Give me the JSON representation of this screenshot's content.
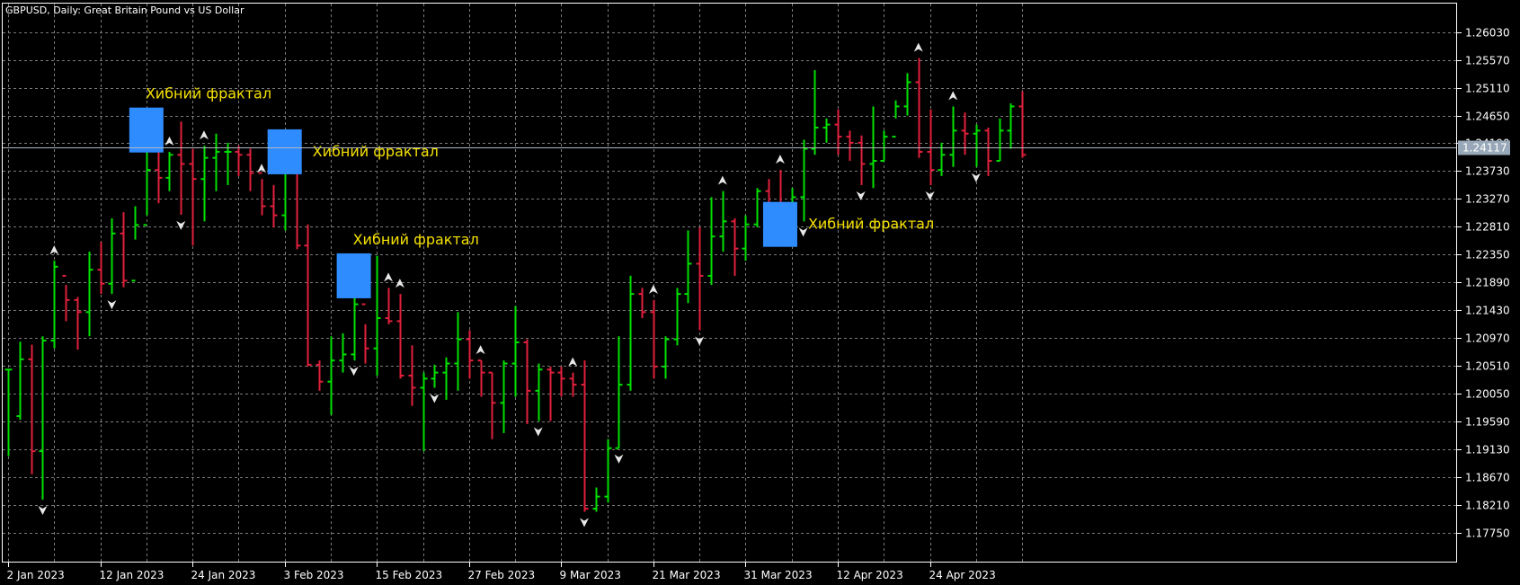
{
  "chart_data": {
    "type": "ohlc",
    "title": "GBPUSD, Daily:  Great Britain Pound vs US Dollar",
    "colors": {
      "background": "#000000",
      "grid": "#7a7a7a",
      "frame": "#ffffff",
      "bull": "#00e000",
      "bear": "#e0203c",
      "fractal_marker": "#e8e8e8",
      "annotation_box": "#2f8cff",
      "annotation_text": "#f5e000",
      "current_price_bg": "#98a8b8"
    },
    "y_axis": {
      "min": 1.1726,
      "max": 1.265,
      "ticks": [
        "1.26030",
        "1.25570",
        "1.25110",
        "1.24650",
        "1.24190",
        "1.23730",
        "1.23270",
        "1.22810",
        "1.22350",
        "1.21890",
        "1.21430",
        "1.20970",
        "1.20510",
        "1.20050",
        "1.19590",
        "1.19130",
        "1.18670",
        "1.18210",
        "1.17750"
      ]
    },
    "x_axis": {
      "labels": [
        {
          "text": "2 Jan 2023",
          "bar": 0
        },
        {
          "text": "12 Jan 2023",
          "bar": 8
        },
        {
          "text": "24 Jan 2023",
          "bar": 16
        },
        {
          "text": "3 Feb 2023",
          "bar": 24
        },
        {
          "text": "15 Feb 2023",
          "bar": 32
        },
        {
          "text": "27 Feb 2023",
          "bar": 40
        },
        {
          "text": "9 Mar 2023",
          "bar": 48
        },
        {
          "text": "21 Mar 2023",
          "bar": 56
        },
        {
          "text": "31 Mar 2023",
          "bar": 64
        },
        {
          "text": "12 Apr 2023",
          "bar": 72
        },
        {
          "text": "24 Apr 2023",
          "bar": 80
        }
      ]
    },
    "current_price": "1.24117",
    "bars": [
      [
        1.2045,
        1.2046,
        1.1902,
        1.2045
      ],
      [
        1.1968,
        1.2091,
        1.1962,
        1.2062
      ],
      [
        1.2062,
        1.2086,
        1.1872,
        1.191
      ],
      [
        1.191,
        1.21,
        1.183,
        1.2093
      ],
      [
        1.2093,
        1.2225,
        1.208,
        1.2215
      ],
      [
        1.22,
        1.2185,
        1.2125,
        1.216
      ],
      [
        1.216,
        1.2165,
        1.2078,
        1.214
      ],
      [
        1.214,
        1.224,
        1.21,
        1.221
      ],
      [
        1.221,
        1.2256,
        1.217,
        1.2187
      ],
      [
        1.2187,
        1.2295,
        1.217,
        1.227
      ],
      [
        1.227,
        1.2305,
        1.2181,
        1.2192
      ],
      [
        1.2192,
        1.2315,
        1.226,
        1.2284
      ],
      [
        1.2284,
        1.244,
        1.23,
        1.2375
      ],
      [
        1.2375,
        1.244,
        1.232,
        1.2362
      ],
      [
        1.2362,
        1.2405,
        1.234,
        1.24
      ],
      [
        1.24,
        1.2455,
        1.2301,
        1.2385
      ],
      [
        1.2385,
        1.241,
        1.225,
        1.236
      ],
      [
        1.236,
        1.2415,
        1.229,
        1.2395
      ],
      [
        1.2395,
        1.2435,
        1.234,
        1.2405
      ],
      [
        1.2405,
        1.242,
        1.235,
        1.2405
      ],
      [
        1.2405,
        1.2415,
        1.2365,
        1.24
      ],
      [
        1.24,
        1.241,
        1.234,
        1.237
      ],
      [
        1.237,
        1.236,
        1.23,
        1.2315
      ],
      [
        1.2315,
        1.235,
        1.228,
        1.23
      ],
      [
        1.23,
        1.242,
        1.2275,
        1.238
      ],
      [
        1.238,
        1.2395,
        1.2244,
        1.225
      ],
      [
        1.225,
        1.2285,
        1.205,
        1.2053
      ],
      [
        1.2053,
        1.206,
        1.201,
        1.2025
      ],
      [
        1.2025,
        1.21,
        1.197,
        1.206
      ],
      [
        1.206,
        1.2105,
        1.204,
        1.207
      ],
      [
        1.207,
        1.2185,
        1.206,
        1.2153
      ],
      [
        1.2153,
        1.212,
        1.2055,
        1.208
      ],
      [
        1.208,
        1.2233,
        1.2035,
        1.213
      ],
      [
        1.213,
        1.218,
        1.212,
        1.2125
      ],
      [
        1.2125,
        1.217,
        1.203,
        1.2035
      ],
      [
        1.2035,
        1.2085,
        1.1985,
        1.2015
      ],
      [
        1.2015,
        1.204,
        1.191,
        1.203
      ],
      [
        1.203,
        1.2053,
        1.2015,
        1.204
      ],
      [
        1.204,
        1.2065,
        1.1995,
        1.2055
      ],
      [
        1.2055,
        1.214,
        1.201,
        1.2095
      ],
      [
        1.2095,
        1.211,
        1.203,
        1.206
      ],
      [
        1.206,
        1.206,
        1.2,
        1.204
      ],
      [
        1.204,
        1.204,
        1.193,
        1.199
      ],
      [
        1.199,
        1.206,
        1.194,
        1.2055
      ],
      [
        1.2055,
        1.215,
        1.2,
        1.209
      ],
      [
        1.209,
        1.2095,
        1.1955,
        1.201
      ],
      [
        1.201,
        1.2055,
        1.196,
        1.2045
      ],
      [
        1.2045,
        1.205,
        1.196,
        1.204
      ],
      [
        1.204,
        1.205,
        1.2,
        1.203
      ],
      [
        1.203,
        1.204,
        1.2,
        1.202
      ],
      [
        1.202,
        1.206,
        1.181,
        1.1815
      ],
      [
        1.1815,
        1.185,
        1.181,
        1.1835
      ],
      [
        1.1835,
        1.193,
        1.1825,
        1.1915
      ],
      [
        1.1915,
        1.21,
        1.1915,
        1.202
      ],
      [
        1.202,
        1.22,
        1.201,
        1.217
      ],
      [
        1.217,
        1.218,
        1.213,
        1.214
      ],
      [
        1.214,
        1.216,
        1.203,
        1.205
      ],
      [
        1.205,
        1.21,
        1.203,
        1.2095
      ],
      [
        1.2095,
        1.218,
        1.2085,
        1.217
      ],
      [
        1.217,
        1.2275,
        1.2155,
        1.222
      ],
      [
        1.222,
        1.228,
        1.211,
        1.22
      ],
      [
        1.22,
        1.233,
        1.2185,
        1.2265
      ],
      [
        1.2265,
        1.234,
        1.224,
        1.229
      ],
      [
        1.229,
        1.2295,
        1.22,
        1.2245
      ],
      [
        1.2245,
        1.23,
        1.2225,
        1.2285
      ],
      [
        1.2285,
        1.2345,
        1.228,
        1.234
      ],
      [
        1.234,
        1.236,
        1.231,
        1.231
      ],
      [
        1.231,
        1.2375,
        1.228,
        1.23
      ],
      [
        1.23,
        1.2345,
        1.23,
        1.233
      ],
      [
        1.233,
        1.2425,
        1.229,
        1.241
      ],
      [
        1.241,
        1.254,
        1.24,
        1.2445
      ],
      [
        1.2445,
        1.246,
        1.242,
        1.245
      ],
      [
        1.245,
        1.2475,
        1.24,
        1.243
      ],
      [
        1.243,
        1.244,
        1.239,
        1.242
      ],
      [
        1.242,
        1.2432,
        1.235,
        1.2385
      ],
      [
        1.2385,
        1.248,
        1.2345,
        1.239
      ],
      [
        1.239,
        1.244,
        1.239,
        1.243
      ],
      [
        1.243,
        1.249,
        1.246,
        1.248
      ],
      [
        1.248,
        1.2535,
        1.2465,
        1.252
      ],
      [
        1.252,
        1.256,
        1.2395,
        1.2405
      ],
      [
        1.2405,
        1.2475,
        1.235,
        1.2375
      ],
      [
        1.2375,
        1.242,
        1.2365,
        1.24
      ],
      [
        1.24,
        1.248,
        1.238,
        1.244
      ],
      [
        1.244,
        1.247,
        1.24,
        1.2435
      ],
      [
        1.2435,
        1.245,
        1.238,
        1.244
      ],
      [
        1.244,
        1.2445,
        1.2365,
        1.239
      ],
      [
        1.239,
        1.246,
        1.239,
        1.244
      ],
      [
        1.244,
        1.2485,
        1.241,
        1.248
      ],
      [
        1.248,
        1.2505,
        1.2395,
        1.24
      ]
    ],
    "fractals": [
      {
        "bar": 4,
        "type": "up"
      },
      {
        "bar": 3,
        "type": "down"
      },
      {
        "bar": 9,
        "type": "down"
      },
      {
        "bar": 12,
        "type": "up"
      },
      {
        "bar": 14,
        "type": "up"
      },
      {
        "bar": 15,
        "type": "down"
      },
      {
        "bar": 17,
        "type": "up"
      },
      {
        "bar": 22,
        "type": "up"
      },
      {
        "bar": 30,
        "type": "down"
      },
      {
        "bar": 33,
        "type": "up"
      },
      {
        "bar": 34,
        "type": "up"
      },
      {
        "bar": 37,
        "type": "down"
      },
      {
        "bar": 41,
        "type": "up"
      },
      {
        "bar": 46,
        "type": "down"
      },
      {
        "bar": 49,
        "type": "up"
      },
      {
        "bar": 50,
        "type": "down"
      },
      {
        "bar": 53,
        "type": "down"
      },
      {
        "bar": 56,
        "type": "up"
      },
      {
        "bar": 60,
        "type": "down"
      },
      {
        "bar": 62,
        "type": "up"
      },
      {
        "bar": 67,
        "type": "up"
      },
      {
        "bar": 67,
        "type": "down"
      },
      {
        "bar": 69,
        "type": "down"
      },
      {
        "bar": 74,
        "type": "down"
      },
      {
        "bar": 79,
        "type": "up"
      },
      {
        "bar": 80,
        "type": "down"
      },
      {
        "bar": 82,
        "type": "up"
      },
      {
        "bar": 84,
        "type": "down"
      }
    ],
    "annotations": [
      {
        "text": "Хибний фрактал",
        "bar": 12,
        "price": 1.2441,
        "side": "above"
      },
      {
        "text": "Хибний фрактал",
        "bar": 24,
        "price": 1.2405,
        "side": "right"
      },
      {
        "text": "Хибний фрактал",
        "bar": 30,
        "price": 1.22,
        "side": "above"
      },
      {
        "text": "Хибний фрактал",
        "bar": 67,
        "price": 1.2285,
        "side": "right"
      }
    ]
  }
}
